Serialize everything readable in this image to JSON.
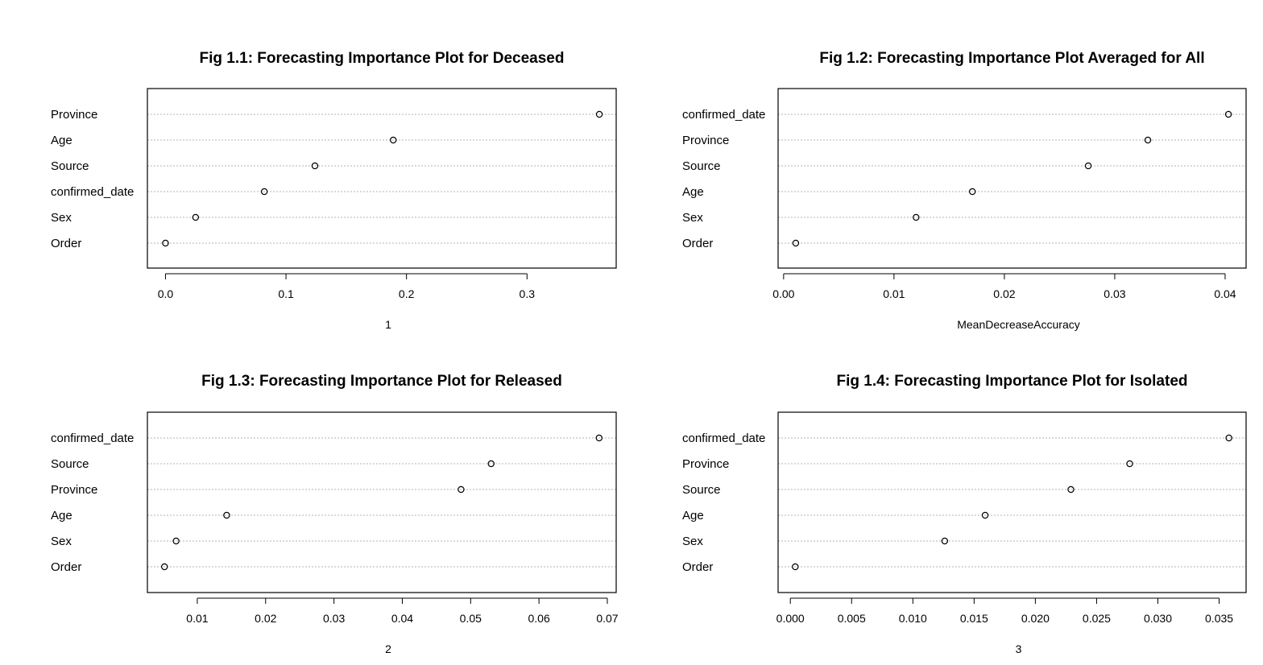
{
  "chart_data": [
    {
      "type": "scatter",
      "title": "Fig 1.1: Forecasting Importance Plot for Deceased",
      "xlabel": "1",
      "categories": [
        "Province",
        "Age",
        "Source",
        "confirmed_date",
        "Sex",
        "Order"
      ],
      "values": [
        0.36,
        0.189,
        0.124,
        0.082,
        0.025,
        0.0
      ],
      "xlim": [
        -0.015,
        0.374
      ],
      "xticks": [
        0.0,
        0.1,
        0.2,
        0.3
      ],
      "xtick_labels": [
        "0.0",
        "0.1",
        "0.2",
        "0.3"
      ],
      "grid": true,
      "legend": "none"
    },
    {
      "type": "scatter",
      "title": "Fig 1.2: Forecasting Importance Plot Averaged for All",
      "xlabel": "MeanDecreaseAccuracy",
      "categories": [
        "confirmed_date",
        "Province",
        "Source",
        "Age",
        "Sex",
        "Order"
      ],
      "values": [
        0.0403,
        0.033,
        0.0276,
        0.0171,
        0.012,
        0.0011
      ],
      "xlim": [
        -0.0005,
        0.0419
      ],
      "xticks": [
        0.0,
        0.01,
        0.02,
        0.03,
        0.04
      ],
      "xtick_labels": [
        "0.00",
        "0.01",
        "0.02",
        "0.03",
        "0.04"
      ],
      "grid": true,
      "legend": "none"
    },
    {
      "type": "scatter",
      "title": "Fig 1.3: Forecasting Importance Plot for Released",
      "xlabel": "2",
      "categories": [
        "confirmed_date",
        "Source",
        "Province",
        "Age",
        "Sex",
        "Order"
      ],
      "values": [
        0.0688,
        0.053,
        0.0486,
        0.0143,
        0.0069,
        0.0052
      ],
      "xlim": [
        0.0027,
        0.0713
      ],
      "xticks": [
        0.01,
        0.02,
        0.03,
        0.04,
        0.05,
        0.06,
        0.07
      ],
      "xtick_labels": [
        "0.01",
        "0.02",
        "0.03",
        "0.04",
        "0.05",
        "0.06",
        "0.07"
      ],
      "grid": true,
      "legend": "none"
    },
    {
      "type": "scatter",
      "title": "Fig 1.4: Forecasting Importance Plot for Isolated",
      "xlabel": "3",
      "categories": [
        "confirmed_date",
        "Province",
        "Source",
        "Age",
        "Sex",
        "Order"
      ],
      "values": [
        0.0358,
        0.0277,
        0.0229,
        0.0159,
        0.0126,
        0.0004
      ],
      "xlim": [
        -0.001,
        0.0372
      ],
      "xticks": [
        0.0,
        0.005,
        0.01,
        0.015,
        0.02,
        0.025,
        0.03,
        0.035
      ],
      "xtick_labels": [
        "0.000",
        "0.005",
        "0.010",
        "0.015",
        "0.020",
        "0.025",
        "0.030",
        "0.035"
      ],
      "grid": true,
      "legend": "none"
    }
  ]
}
